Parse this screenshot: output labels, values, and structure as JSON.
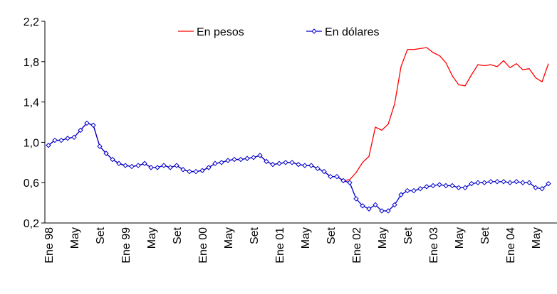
{
  "chart_data": {
    "type": "line",
    "categories": [
      "Ene 98",
      null,
      null,
      null,
      "May",
      null,
      null,
      null,
      "Set",
      null,
      null,
      null,
      "Ene 99",
      null,
      null,
      null,
      "May",
      null,
      null,
      null,
      "Set",
      null,
      null,
      null,
      "Ene 00",
      null,
      null,
      null,
      "May",
      null,
      null,
      null,
      "Set",
      null,
      null,
      null,
      "Ene 01",
      null,
      null,
      null,
      "May",
      null,
      null,
      null,
      "Set",
      null,
      null,
      null,
      "Ene 02",
      null,
      null,
      null,
      "May",
      null,
      null,
      null,
      "Set",
      null,
      null,
      null,
      "Ene 03",
      null,
      null,
      null,
      "May",
      null,
      null,
      null,
      "Set",
      null,
      null,
      null,
      "Ene 04",
      null,
      null,
      null,
      "May",
      null,
      null
    ],
    "series": [
      {
        "name": "En pesos",
        "color": "#ff0000",
        "marker": false,
        "values": [
          0.97,
          1.02,
          1.02,
          1.04,
          1.05,
          1.12,
          1.19,
          1.17,
          0.96,
          0.89,
          0.83,
          0.79,
          0.77,
          0.76,
          0.77,
          0.79,
          0.75,
          0.75,
          0.77,
          0.75,
          0.77,
          0.73,
          0.71,
          0.71,
          0.72,
          0.75,
          0.79,
          0.8,
          0.82,
          0.83,
          0.83,
          0.84,
          0.85,
          0.87,
          0.81,
          0.78,
          0.79,
          0.8,
          0.8,
          0.78,
          0.77,
          0.77,
          0.74,
          0.71,
          0.66,
          0.66,
          0.62,
          0.63,
          0.7,
          0.8,
          0.86,
          1.15,
          1.12,
          1.18,
          1.38,
          1.75,
          1.92,
          1.92,
          1.93,
          1.94,
          1.89,
          1.86,
          1.79,
          1.66,
          1.57,
          1.56,
          1.67,
          1.77,
          1.76,
          1.77,
          1.75,
          1.81,
          1.74,
          1.78,
          1.72,
          1.73,
          1.64,
          1.6,
          1.78
        ]
      },
      {
        "name": "En dólares",
        "color": "#0000cc",
        "marker": true,
        "values": [
          0.97,
          1.02,
          1.02,
          1.04,
          1.05,
          1.12,
          1.19,
          1.17,
          0.96,
          0.89,
          0.83,
          0.79,
          0.77,
          0.76,
          0.77,
          0.79,
          0.75,
          0.75,
          0.77,
          0.75,
          0.77,
          0.73,
          0.71,
          0.71,
          0.72,
          0.75,
          0.79,
          0.8,
          0.82,
          0.83,
          0.83,
          0.84,
          0.85,
          0.87,
          0.81,
          0.78,
          0.79,
          0.8,
          0.8,
          0.78,
          0.77,
          0.77,
          0.74,
          0.71,
          0.66,
          0.66,
          0.62,
          0.6,
          0.44,
          0.37,
          0.34,
          0.38,
          0.32,
          0.32,
          0.38,
          0.48,
          0.52,
          0.52,
          0.54,
          0.56,
          0.57,
          0.58,
          0.57,
          0.57,
          0.55,
          0.55,
          0.59,
          0.6,
          0.6,
          0.61,
          0.61,
          0.61,
          0.6,
          0.61,
          0.6,
          0.6,
          0.55,
          0.54,
          0.59
        ]
      }
    ],
    "ylim": [
      0.2,
      2.2
    ],
    "yticks": [
      {
        "value": 0.2,
        "label": "0,2"
      },
      {
        "value": 0.6,
        "label": "0,6"
      },
      {
        "value": 1.0,
        "label": "1,0"
      },
      {
        "value": 1.4,
        "label": "1,4"
      },
      {
        "value": 1.8,
        "label": "1,8"
      },
      {
        "value": 2.2,
        "label": "2,2"
      }
    ],
    "grid": false,
    "legend": "top"
  }
}
